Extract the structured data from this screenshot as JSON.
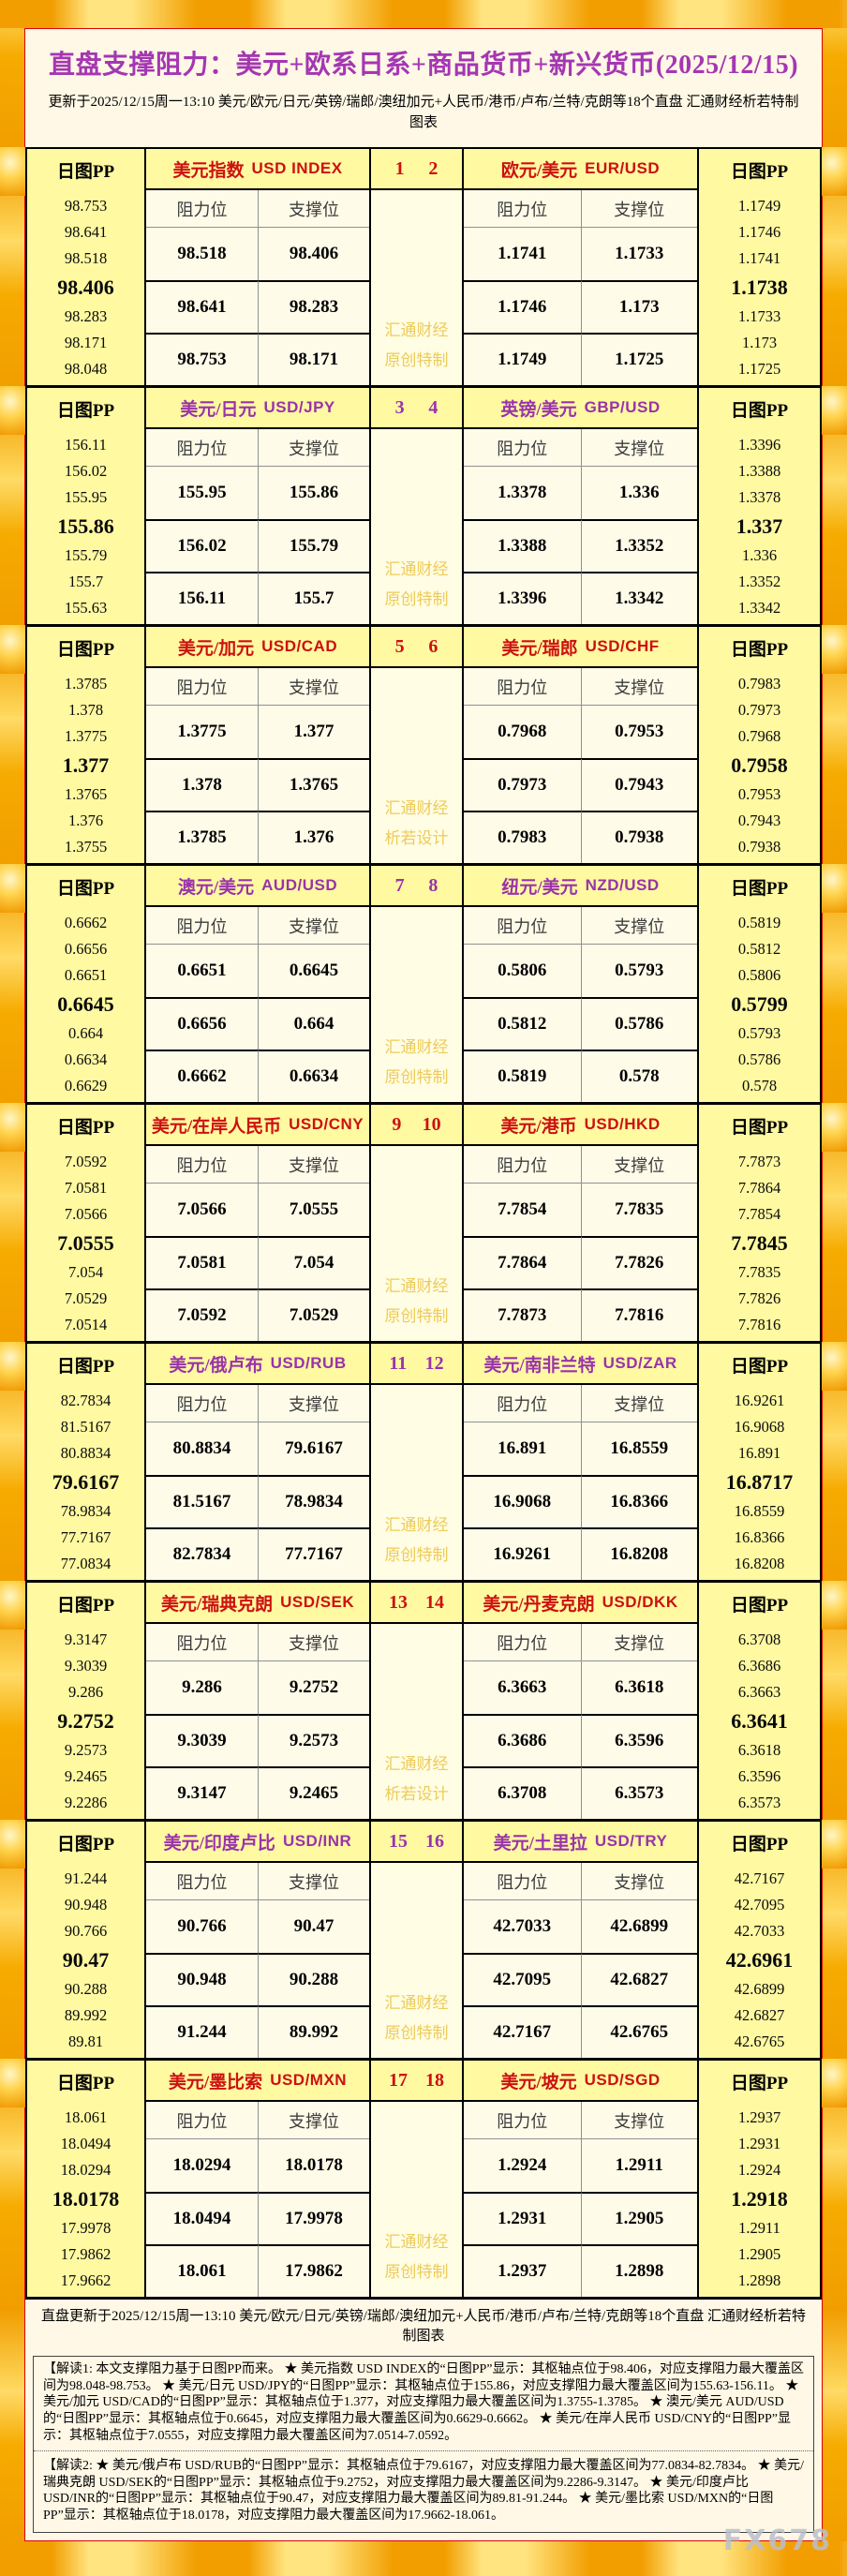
{
  "page": {
    "title": "直盘支撑阻力：美元+欧系日系+商品货币+新兴货币(2025/12/15)",
    "subtitle": "更新于2025/12/15周一13:10 美元/欧元/日元/英镑/瑞郎/澳纽加元+人民币/港币/卢布/兰特/克朗等18个直盘 汇通财经析若特制图表",
    "footer_summary": "直盘更新于2025/12/15周一13:10 美元/欧元/日元/英镑/瑞郎/澳纽加元+人民币/港币/卢布/兰特/克朗等18个直盘 汇通财经析若特制图表",
    "note1": "【解读1: 本文支撑阻力基于日图PP而来。 ★ 美元指数 USD INDEX的“日图PP”显示：其枢轴点位于98.406，对应支撑阻力最大覆盖区间为98.048-98.753。 ★ 美元/日元 USD/JPY的“日图PP”显示：其枢轴点位于155.86，对应支撑阻力最大覆盖区间为155.63-156.11。 ★ 美元/加元 USD/CAD的“日图PP”显示：其枢轴点位于1.377，对应支撑阻力最大覆盖区间为1.3755-1.3785。 ★ 澳元/美元 AUD/USD的“日图PP”显示：其枢轴点位于0.6645，对应支撑阻力最大覆盖区间为0.6629-0.6662。 ★ 美元/在岸人民币 USD/CNY的“日图PP”显示：其枢轴点位于7.0555，对应支撑阻力最大覆盖区间为7.0514-7.0592。",
    "note2": "【解读2:  ★ 美元/俄卢布 USD/RUB的“日图PP”显示：其枢轴点位于79.6167，对应支撑阻力最大覆盖区间为77.0834-82.7834。 ★ 美元/瑞典克朗 USD/SEK的“日图PP”显示：其枢轴点位于9.2752，对应支撑阻力最大覆盖区间为9.2286-9.3147。 ★ 美元/印度卢比 USD/INR的“日图PP”显示：其枢轴点位于90.47，对应支撑阻力最大覆盖区间为89.81-91.244。 ★ 美元/墨比索 USD/MXN的“日图PP”显示：其枢轴点位于18.0178，对应支撑阻力最大覆盖区间为17.9662-18.061。",
    "corner_watermark": "FX678"
  },
  "labels": {
    "pp_header": "日图PP",
    "resistance": "阻力位",
    "support": "支撑位"
  },
  "colors": {
    "red": "#cc1111",
    "purple": "#9933aa",
    "title": "#a437b2",
    "yellow": "#fff9a1",
    "cream": "#fffbe9",
    "wm": "#edcb5a"
  },
  "blocks": [
    {
      "accent": "red",
      "num_left": "1",
      "num_right": "2",
      "watermark": [
        "汇通财经",
        "原创特制"
      ],
      "left": {
        "cn": "美元指数",
        "en": "USD INDEX",
        "pp": [
          "98.753",
          "98.641",
          "98.518",
          "98.406",
          "98.283",
          "98.171",
          "98.048"
        ],
        "rows": [
          [
            "98.518",
            "98.406"
          ],
          [
            "98.641",
            "98.283"
          ],
          [
            "98.753",
            "98.171"
          ]
        ]
      },
      "right": {
        "cn": "欧元/美元",
        "en": "EUR/USD",
        "pp": [
          "1.1749",
          "1.1746",
          "1.1741",
          "1.1738",
          "1.1733",
          "1.173",
          "1.1725"
        ],
        "rows": [
          [
            "1.1741",
            "1.1733"
          ],
          [
            "1.1746",
            "1.173"
          ],
          [
            "1.1749",
            "1.1725"
          ]
        ]
      }
    },
    {
      "accent": "purple",
      "num_left": "3",
      "num_right": "4",
      "watermark": [
        "汇通财经",
        "原创特制"
      ],
      "left": {
        "cn": "美元/日元",
        "en": "USD/JPY",
        "pp": [
          "156.11",
          "156.02",
          "155.95",
          "155.86",
          "155.79",
          "155.7",
          "155.63"
        ],
        "rows": [
          [
            "155.95",
            "155.86"
          ],
          [
            "156.02",
            "155.79"
          ],
          [
            "156.11",
            "155.7"
          ]
        ]
      },
      "right": {
        "cn": "英镑/美元",
        "en": "GBP/USD",
        "pp": [
          "1.3396",
          "1.3388",
          "1.3378",
          "1.337",
          "1.336",
          "1.3352",
          "1.3342"
        ],
        "rows": [
          [
            "1.3378",
            "1.336"
          ],
          [
            "1.3388",
            "1.3352"
          ],
          [
            "1.3396",
            "1.3342"
          ]
        ]
      }
    },
    {
      "accent": "red",
      "num_left": "5",
      "num_right": "6",
      "watermark": [
        "汇通财经",
        "析若设计"
      ],
      "left": {
        "cn": "美元/加元",
        "en": "USD/CAD",
        "pp": [
          "1.3785",
          "1.378",
          "1.3775",
          "1.377",
          "1.3765",
          "1.376",
          "1.3755"
        ],
        "rows": [
          [
            "1.3775",
            "1.377"
          ],
          [
            "1.378",
            "1.3765"
          ],
          [
            "1.3785",
            "1.376"
          ]
        ]
      },
      "right": {
        "cn": "美元/瑞郎",
        "en": "USD/CHF",
        "pp": [
          "0.7983",
          "0.7973",
          "0.7968",
          "0.7958",
          "0.7953",
          "0.7943",
          "0.7938"
        ],
        "rows": [
          [
            "0.7968",
            "0.7953"
          ],
          [
            "0.7973",
            "0.7943"
          ],
          [
            "0.7983",
            "0.7938"
          ]
        ]
      }
    },
    {
      "accent": "purple",
      "num_left": "7",
      "num_right": "8",
      "watermark": [
        "汇通财经",
        "原创特制"
      ],
      "left": {
        "cn": "澳元/美元",
        "en": "AUD/USD",
        "pp": [
          "0.6662",
          "0.6656",
          "0.6651",
          "0.6645",
          "0.664",
          "0.6634",
          "0.6629"
        ],
        "rows": [
          [
            "0.6651",
            "0.6645"
          ],
          [
            "0.6656",
            "0.664"
          ],
          [
            "0.6662",
            "0.6634"
          ]
        ]
      },
      "right": {
        "cn": "纽元/美元",
        "en": "NZD/USD",
        "pp": [
          "0.5819",
          "0.5812",
          "0.5806",
          "0.5799",
          "0.5793",
          "0.5786",
          "0.578"
        ],
        "rows": [
          [
            "0.5806",
            "0.5793"
          ],
          [
            "0.5812",
            "0.5786"
          ],
          [
            "0.5819",
            "0.578"
          ]
        ]
      }
    },
    {
      "accent": "red",
      "num_left": "9",
      "num_right": "10",
      "watermark": [
        "汇通财经",
        "原创特制"
      ],
      "left": {
        "cn": "美元/在岸人民币",
        "en": "USD/CNY",
        "pp": [
          "7.0592",
          "7.0581",
          "7.0566",
          "7.0555",
          "7.054",
          "7.0529",
          "7.0514"
        ],
        "rows": [
          [
            "7.0566",
            "7.0555"
          ],
          [
            "7.0581",
            "7.054"
          ],
          [
            "7.0592",
            "7.0529"
          ]
        ]
      },
      "right": {
        "cn": "美元/港币",
        "en": "USD/HKD",
        "pp": [
          "7.7873",
          "7.7864",
          "7.7854",
          "7.7845",
          "7.7835",
          "7.7826",
          "7.7816"
        ],
        "rows": [
          [
            "7.7854",
            "7.7835"
          ],
          [
            "7.7864",
            "7.7826"
          ],
          [
            "7.7873",
            "7.7816"
          ]
        ]
      }
    },
    {
      "accent": "purple",
      "num_left": "11",
      "num_right": "12",
      "watermark": [
        "汇通财经",
        "原创特制"
      ],
      "left": {
        "cn": "美元/俄卢布",
        "en": "USD/RUB",
        "pp": [
          "82.7834",
          "81.5167",
          "80.8834",
          "79.6167",
          "78.9834",
          "77.7167",
          "77.0834"
        ],
        "rows": [
          [
            "80.8834",
            "79.6167"
          ],
          [
            "81.5167",
            "78.9834"
          ],
          [
            "82.7834",
            "77.7167"
          ]
        ]
      },
      "right": {
        "cn": "美元/南非兰特",
        "en": "USD/ZAR",
        "pp": [
          "16.9261",
          "16.9068",
          "16.891",
          "16.8717",
          "16.8559",
          "16.8366",
          "16.8208"
        ],
        "rows": [
          [
            "16.891",
            "16.8559"
          ],
          [
            "16.9068",
            "16.8366"
          ],
          [
            "16.9261",
            "16.8208"
          ]
        ]
      }
    },
    {
      "accent": "red",
      "num_left": "13",
      "num_right": "14",
      "watermark": [
        "汇通财经",
        "析若设计"
      ],
      "left": {
        "cn": "美元/瑞典克朗",
        "en": "USD/SEK",
        "pp": [
          "9.3147",
          "9.3039",
          "9.286",
          "9.2752",
          "9.2573",
          "9.2465",
          "9.2286"
        ],
        "rows": [
          [
            "9.286",
            "9.2752"
          ],
          [
            "9.3039",
            "9.2573"
          ],
          [
            "9.3147",
            "9.2465"
          ]
        ]
      },
      "right": {
        "cn": "美元/丹麦克朗",
        "en": "USD/DKK",
        "pp": [
          "6.3708",
          "6.3686",
          "6.3663",
          "6.3641",
          "6.3618",
          "6.3596",
          "6.3573"
        ],
        "rows": [
          [
            "6.3663",
            "6.3618"
          ],
          [
            "6.3686",
            "6.3596"
          ],
          [
            "6.3708",
            "6.3573"
          ]
        ]
      }
    },
    {
      "accent": "purple",
      "num_left": "15",
      "num_right": "16",
      "watermark": [
        "汇通财经",
        "原创特制"
      ],
      "left": {
        "cn": "美元/印度卢比",
        "en": "USD/INR",
        "pp": [
          "91.244",
          "90.948",
          "90.766",
          "90.47",
          "90.288",
          "89.992",
          "89.81"
        ],
        "rows": [
          [
            "90.766",
            "90.47"
          ],
          [
            "90.948",
            "90.288"
          ],
          [
            "91.244",
            "89.992"
          ]
        ]
      },
      "right": {
        "cn": "美元/土里拉",
        "en": "USD/TRY",
        "pp": [
          "42.7167",
          "42.7095",
          "42.7033",
          "42.6961",
          "42.6899",
          "42.6827",
          "42.6765"
        ],
        "rows": [
          [
            "42.7033",
            "42.6899"
          ],
          [
            "42.7095",
            "42.6827"
          ],
          [
            "42.7167",
            "42.6765"
          ]
        ]
      }
    },
    {
      "accent": "red",
      "num_left": "17",
      "num_right": "18",
      "watermark": [
        "汇通财经",
        "原创特制"
      ],
      "left": {
        "cn": "美元/墨比索",
        "en": "USD/MXN",
        "pp": [
          "18.061",
          "18.0494",
          "18.0294",
          "18.0178",
          "17.9978",
          "17.9862",
          "17.9662"
        ],
        "rows": [
          [
            "18.0294",
            "18.0178"
          ],
          [
            "18.0494",
            "17.9978"
          ],
          [
            "18.061",
            "17.9862"
          ]
        ]
      },
      "right": {
        "cn": "美元/坡元",
        "en": "USD/SGD",
        "pp": [
          "1.2937",
          "1.2931",
          "1.2924",
          "1.2918",
          "1.2911",
          "1.2905",
          "1.2898"
        ],
        "rows": [
          [
            "1.2924",
            "1.2911"
          ],
          [
            "1.2931",
            "1.2905"
          ],
          [
            "1.2937",
            "1.2898"
          ]
        ]
      }
    }
  ]
}
